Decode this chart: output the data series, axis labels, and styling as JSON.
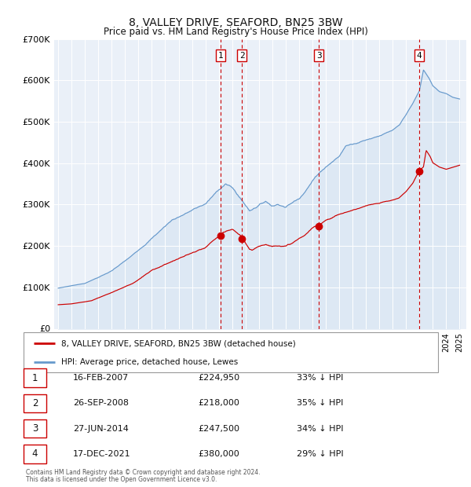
{
  "title": "8, VALLEY DRIVE, SEAFORD, BN25 3BW",
  "subtitle": "Price paid vs. HM Land Registry's House Price Index (HPI)",
  "legend_label_red": "8, VALLEY DRIVE, SEAFORD, BN25 3BW (detached house)",
  "legend_label_blue": "HPI: Average price, detached house, Lewes",
  "footnote1": "Contains HM Land Registry data © Crown copyright and database right 2024.",
  "footnote2": "This data is licensed under the Open Government Licence v3.0.",
  "sales": [
    {
      "num": 1,
      "date": "16-FEB-2007",
      "price": 224950,
      "pct": "33%",
      "x_year": 2007.12
    },
    {
      "num": 2,
      "date": "26-SEP-2008",
      "price": 218000,
      "pct": "35%",
      "x_year": 2008.73
    },
    {
      "num": 3,
      "date": "27-JUN-2014",
      "price": 247500,
      "pct": "34%",
      "x_year": 2014.49
    },
    {
      "num": 4,
      "date": "17-DEC-2021",
      "price": 380000,
      "pct": "29%",
      "x_year": 2021.96
    }
  ],
  "color_red": "#cc0000",
  "color_blue": "#6699cc",
  "color_blue_fill": "#dde8f4",
  "color_bg": "#eaf0f8",
  "color_grid": "#ffffff",
  "color_vline": "#cc0000",
  "ylim": [
    0,
    700000
  ],
  "xlim_start": 1994.7,
  "xlim_end": 2025.5,
  "yticks": [
    0,
    100000,
    200000,
    300000,
    400000,
    500000,
    600000,
    700000
  ],
  "ytick_labels": [
    "£0",
    "£100K",
    "£200K",
    "£300K",
    "£400K",
    "£500K",
    "£600K",
    "£700K"
  ],
  "hpi_keypoints": [
    [
      1995.0,
      98000
    ],
    [
      1997.0,
      110000
    ],
    [
      1999.0,
      140000
    ],
    [
      2000.5,
      175000
    ],
    [
      2002.0,
      220000
    ],
    [
      2003.5,
      265000
    ],
    [
      2005.0,
      290000
    ],
    [
      2006.0,
      305000
    ],
    [
      2007.5,
      355000
    ],
    [
      2008.0,
      345000
    ],
    [
      2009.3,
      290000
    ],
    [
      2010.0,
      305000
    ],
    [
      2010.5,
      315000
    ],
    [
      2011.0,
      305000
    ],
    [
      2011.5,
      310000
    ],
    [
      2012.0,
      305000
    ],
    [
      2012.5,
      315000
    ],
    [
      2013.0,
      325000
    ],
    [
      2014.0,
      370000
    ],
    [
      2014.5,
      390000
    ],
    [
      2015.0,
      405000
    ],
    [
      2016.0,
      430000
    ],
    [
      2016.5,
      455000
    ],
    [
      2017.0,
      460000
    ],
    [
      2017.5,
      465000
    ],
    [
      2018.0,
      470000
    ],
    [
      2018.5,
      475000
    ],
    [
      2019.0,
      480000
    ],
    [
      2019.5,
      485000
    ],
    [
      2020.0,
      490000
    ],
    [
      2020.5,
      500000
    ],
    [
      2021.0,
      525000
    ],
    [
      2021.5,
      550000
    ],
    [
      2022.0,
      580000
    ],
    [
      2022.3,
      630000
    ],
    [
      2022.7,
      610000
    ],
    [
      2023.0,
      590000
    ],
    [
      2023.5,
      575000
    ],
    [
      2024.0,
      570000
    ],
    [
      2024.5,
      560000
    ],
    [
      2025.0,
      555000
    ]
  ],
  "red_keypoints": [
    [
      1995.0,
      58000
    ],
    [
      1996.0,
      60000
    ],
    [
      1997.5,
      68000
    ],
    [
      1999.0,
      88000
    ],
    [
      2000.5,
      110000
    ],
    [
      2002.0,
      142000
    ],
    [
      2003.5,
      165000
    ],
    [
      2005.0,
      185000
    ],
    [
      2006.0,
      195000
    ],
    [
      2007.12,
      224950
    ],
    [
      2007.5,
      230000
    ],
    [
      2008.0,
      235000
    ],
    [
      2008.73,
      218000
    ],
    [
      2009.3,
      185000
    ],
    [
      2009.5,
      182000
    ],
    [
      2010.0,
      195000
    ],
    [
      2010.5,
      200000
    ],
    [
      2011.0,
      195000
    ],
    [
      2011.5,
      200000
    ],
    [
      2012.0,
      198000
    ],
    [
      2012.5,
      205000
    ],
    [
      2013.0,
      215000
    ],
    [
      2013.5,
      225000
    ],
    [
      2014.0,
      240000
    ],
    [
      2014.49,
      247500
    ],
    [
      2015.0,
      260000
    ],
    [
      2016.0,
      275000
    ],
    [
      2017.0,
      285000
    ],
    [
      2017.5,
      290000
    ],
    [
      2018.0,
      295000
    ],
    [
      2018.5,
      298000
    ],
    [
      2019.0,
      300000
    ],
    [
      2019.5,
      305000
    ],
    [
      2020.0,
      308000
    ],
    [
      2020.5,
      315000
    ],
    [
      2021.0,
      330000
    ],
    [
      2021.5,
      350000
    ],
    [
      2021.96,
      380000
    ],
    [
      2022.3,
      390000
    ],
    [
      2022.5,
      430000
    ],
    [
      2022.8,
      415000
    ],
    [
      2023.0,
      400000
    ],
    [
      2023.5,
      390000
    ],
    [
      2024.0,
      385000
    ],
    [
      2024.5,
      390000
    ],
    [
      2025.0,
      395000
    ]
  ]
}
